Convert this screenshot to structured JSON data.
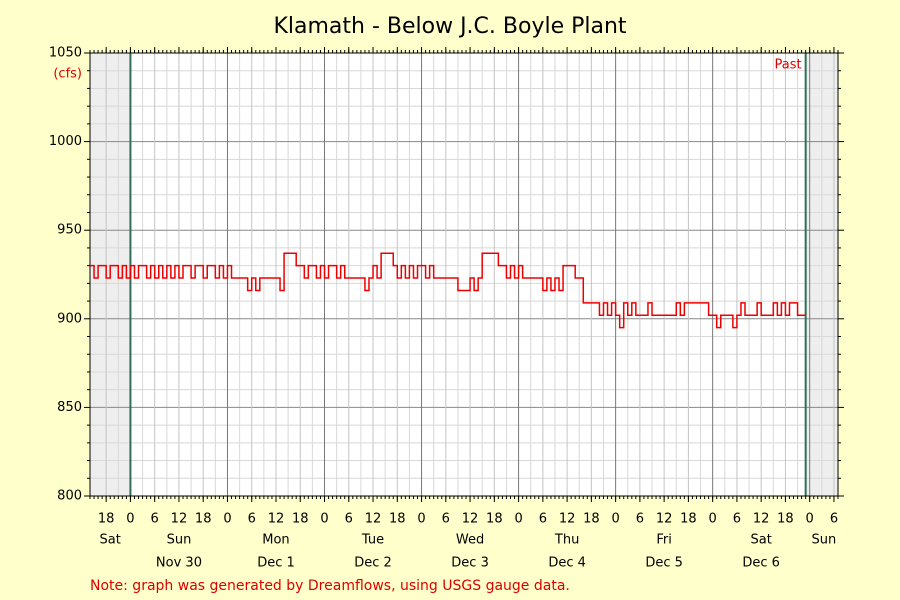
{
  "chart_data": {
    "type": "line",
    "title": "Klamath - Below J.C. Boyle Plant",
    "y_unit": "(cfs)",
    "annotation": "Past",
    "note": "Note: graph was generated by Dreamflows, using USGS gauge data.",
    "xlim": [
      14,
      199
    ],
    "ylim": [
      800,
      1050
    ],
    "yticks": [
      800,
      850,
      900,
      950,
      1000,
      1050
    ],
    "grid": true,
    "vlines": [
      24,
      191
    ],
    "xticks": [
      {
        "value": 18,
        "label": "18"
      },
      {
        "value": 24,
        "label": "0"
      },
      {
        "value": 30,
        "label": "6"
      },
      {
        "value": 36,
        "label": "12"
      },
      {
        "value": 42,
        "label": "18"
      },
      {
        "value": 48,
        "label": "0"
      },
      {
        "value": 54,
        "label": "6"
      },
      {
        "value": 60,
        "label": "12"
      },
      {
        "value": 66,
        "label": "18"
      },
      {
        "value": 72,
        "label": "0"
      },
      {
        "value": 78,
        "label": "6"
      },
      {
        "value": 84,
        "label": "12"
      },
      {
        "value": 90,
        "label": "18"
      },
      {
        "value": 96,
        "label": "0"
      },
      {
        "value": 102,
        "label": "6"
      },
      {
        "value": 108,
        "label": "12"
      },
      {
        "value": 114,
        "label": "18"
      },
      {
        "value": 120,
        "label": "0"
      },
      {
        "value": 126,
        "label": "6"
      },
      {
        "value": 132,
        "label": "12"
      },
      {
        "value": 138,
        "label": "18"
      },
      {
        "value": 144,
        "label": "0"
      },
      {
        "value": 150,
        "label": "6"
      },
      {
        "value": 156,
        "label": "12"
      },
      {
        "value": 162,
        "label": "18"
      },
      {
        "value": 168,
        "label": "0"
      },
      {
        "value": 174,
        "label": "6"
      },
      {
        "value": 180,
        "label": "12"
      },
      {
        "value": 186,
        "label": "18"
      },
      {
        "value": 192,
        "label": "0"
      },
      {
        "value": 198,
        "label": "6"
      }
    ],
    "day_labels": [
      {
        "value": 19,
        "label": "Sat"
      },
      {
        "value": 36,
        "label": "Sun"
      },
      {
        "value": 60,
        "label": "Mon"
      },
      {
        "value": 84,
        "label": "Tue"
      },
      {
        "value": 108,
        "label": "Wed"
      },
      {
        "value": 132,
        "label": "Thu"
      },
      {
        "value": 156,
        "label": "Fri"
      },
      {
        "value": 180,
        "label": "Sat"
      },
      {
        "value": 195.5,
        "label": "Sun"
      }
    ],
    "date_labels": [
      {
        "value": 36,
        "label": "Nov 30"
      },
      {
        "value": 60,
        "label": "Dec 1"
      },
      {
        "value": 84,
        "label": "Dec 2"
      },
      {
        "value": 108,
        "label": "Dec 3"
      },
      {
        "value": 132,
        "label": "Dec 4"
      },
      {
        "value": 156,
        "label": "Dec 5"
      },
      {
        "value": 180,
        "label": "Dec 6"
      }
    ],
    "series": [
      {
        "color": "#ee0000",
        "x": [
          14,
          15,
          16,
          17,
          18,
          19,
          20,
          21,
          22,
          23,
          24,
          25,
          26,
          27,
          28,
          29,
          30,
          31,
          32,
          33,
          34,
          35,
          36,
          37,
          38,
          39,
          40,
          41,
          42,
          43,
          44,
          45,
          46,
          47,
          48,
          49,
          50,
          51,
          52,
          53,
          54,
          55,
          56,
          57,
          58,
          59,
          60,
          61,
          62,
          63,
          64,
          65,
          66,
          67,
          68,
          69,
          70,
          71,
          72,
          73,
          74,
          75,
          76,
          77,
          78,
          79,
          80,
          81,
          82,
          83,
          84,
          85,
          86,
          87,
          88,
          89,
          90,
          91,
          92,
          93,
          94,
          95,
          96,
          97,
          98,
          99,
          100,
          101,
          102,
          103,
          104,
          105,
          106,
          107,
          108,
          109,
          110,
          111,
          112,
          113,
          114,
          115,
          116,
          117,
          118,
          119,
          120,
          121,
          122,
          123,
          124,
          125,
          126,
          127,
          128,
          129,
          130,
          131,
          132,
          133,
          134,
          135,
          136,
          137,
          138,
          139,
          140,
          141,
          142,
          143,
          144,
          145,
          146,
          147,
          148,
          149,
          150,
          151,
          152,
          153,
          154,
          155,
          156,
          157,
          158,
          159,
          160,
          161,
          162,
          163,
          164,
          165,
          166,
          167,
          168,
          169,
          170,
          171,
          172,
          173,
          174,
          175,
          176,
          177,
          178,
          179,
          180,
          181,
          182,
          183,
          184,
          185,
          186,
          187,
          188,
          189,
          190,
          191
        ],
        "values": [
          930,
          923,
          930,
          930,
          923,
          930,
          930,
          923,
          930,
          923,
          930,
          923,
          930,
          930,
          923,
          930,
          923,
          930,
          923,
          930,
          923,
          930,
          923,
          930,
          930,
          923,
          930,
          930,
          923,
          930,
          930,
          923,
          930,
          923,
          930,
          923,
          923,
          923,
          923,
          916,
          923,
          916,
          923,
          923,
          923,
          923,
          923,
          916,
          937,
          937,
          937,
          930,
          930,
          923,
          930,
          930,
          923,
          930,
          923,
          930,
          930,
          923,
          930,
          923,
          923,
          923,
          923,
          923,
          916,
          923,
          930,
          923,
          937,
          937,
          937,
          930,
          923,
          930,
          923,
          930,
          923,
          930,
          930,
          923,
          930,
          923,
          923,
          923,
          923,
          923,
          923,
          916,
          916,
          916,
          923,
          916,
          923,
          937,
          937,
          937,
          937,
          930,
          930,
          923,
          930,
          923,
          930,
          923,
          923,
          923,
          923,
          923,
          916,
          923,
          916,
          923,
          916,
          930,
          930,
          930,
          923,
          923,
          909,
          909,
          909,
          909,
          902,
          909,
          902,
          909,
          902,
          895,
          909,
          902,
          909,
          902,
          902,
          902,
          909,
          902,
          902,
          902,
          902,
          902,
          902,
          909,
          902,
          909,
          909,
          909,
          909,
          909,
          909,
          902,
          902,
          895,
          902,
          902,
          902,
          895,
          902,
          909,
          902,
          902,
          902,
          909,
          902,
          902,
          902,
          909,
          902,
          909,
          902,
          909,
          909,
          902,
          902,
          902
        ]
      }
    ]
  }
}
